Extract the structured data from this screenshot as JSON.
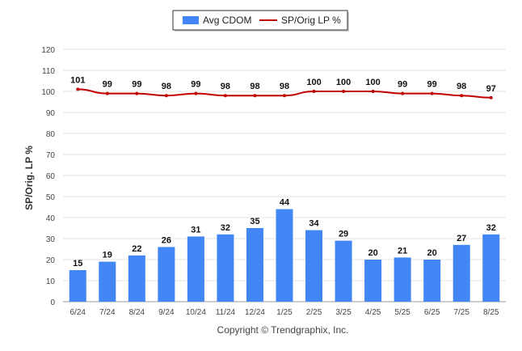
{
  "chart_data": {
    "type": "bar",
    "categories": [
      "6/24",
      "7/24",
      "8/24",
      "9/24",
      "10/24",
      "11/24",
      "12/24",
      "1/25",
      "2/25",
      "3/25",
      "4/25",
      "5/25",
      "6/25",
      "7/25",
      "8/25"
    ],
    "series": [
      {
        "name": "Avg CDOM",
        "type": "bar",
        "color": "#4285f4",
        "values": [
          15,
          19,
          22,
          26,
          31,
          32,
          35,
          44,
          34,
          29,
          20,
          21,
          20,
          27,
          32
        ]
      },
      {
        "name": "SP/Orig LP %",
        "type": "line",
        "color": "#c00000",
        "values": [
          101,
          99,
          99,
          98,
          99,
          98,
          98,
          98,
          100,
          100,
          100,
          99,
          99,
          98,
          97
        ]
      }
    ],
    "ylabel": "SP/Orig. LP %",
    "ylim": [
      0,
      120
    ],
    "yticks": [
      0,
      10,
      20,
      30,
      40,
      50,
      60,
      70,
      80,
      90,
      100,
      110,
      120
    ],
    "grid": true,
    "legend": "top-center"
  },
  "footer": "Copyright © Trendgraphix, Inc."
}
